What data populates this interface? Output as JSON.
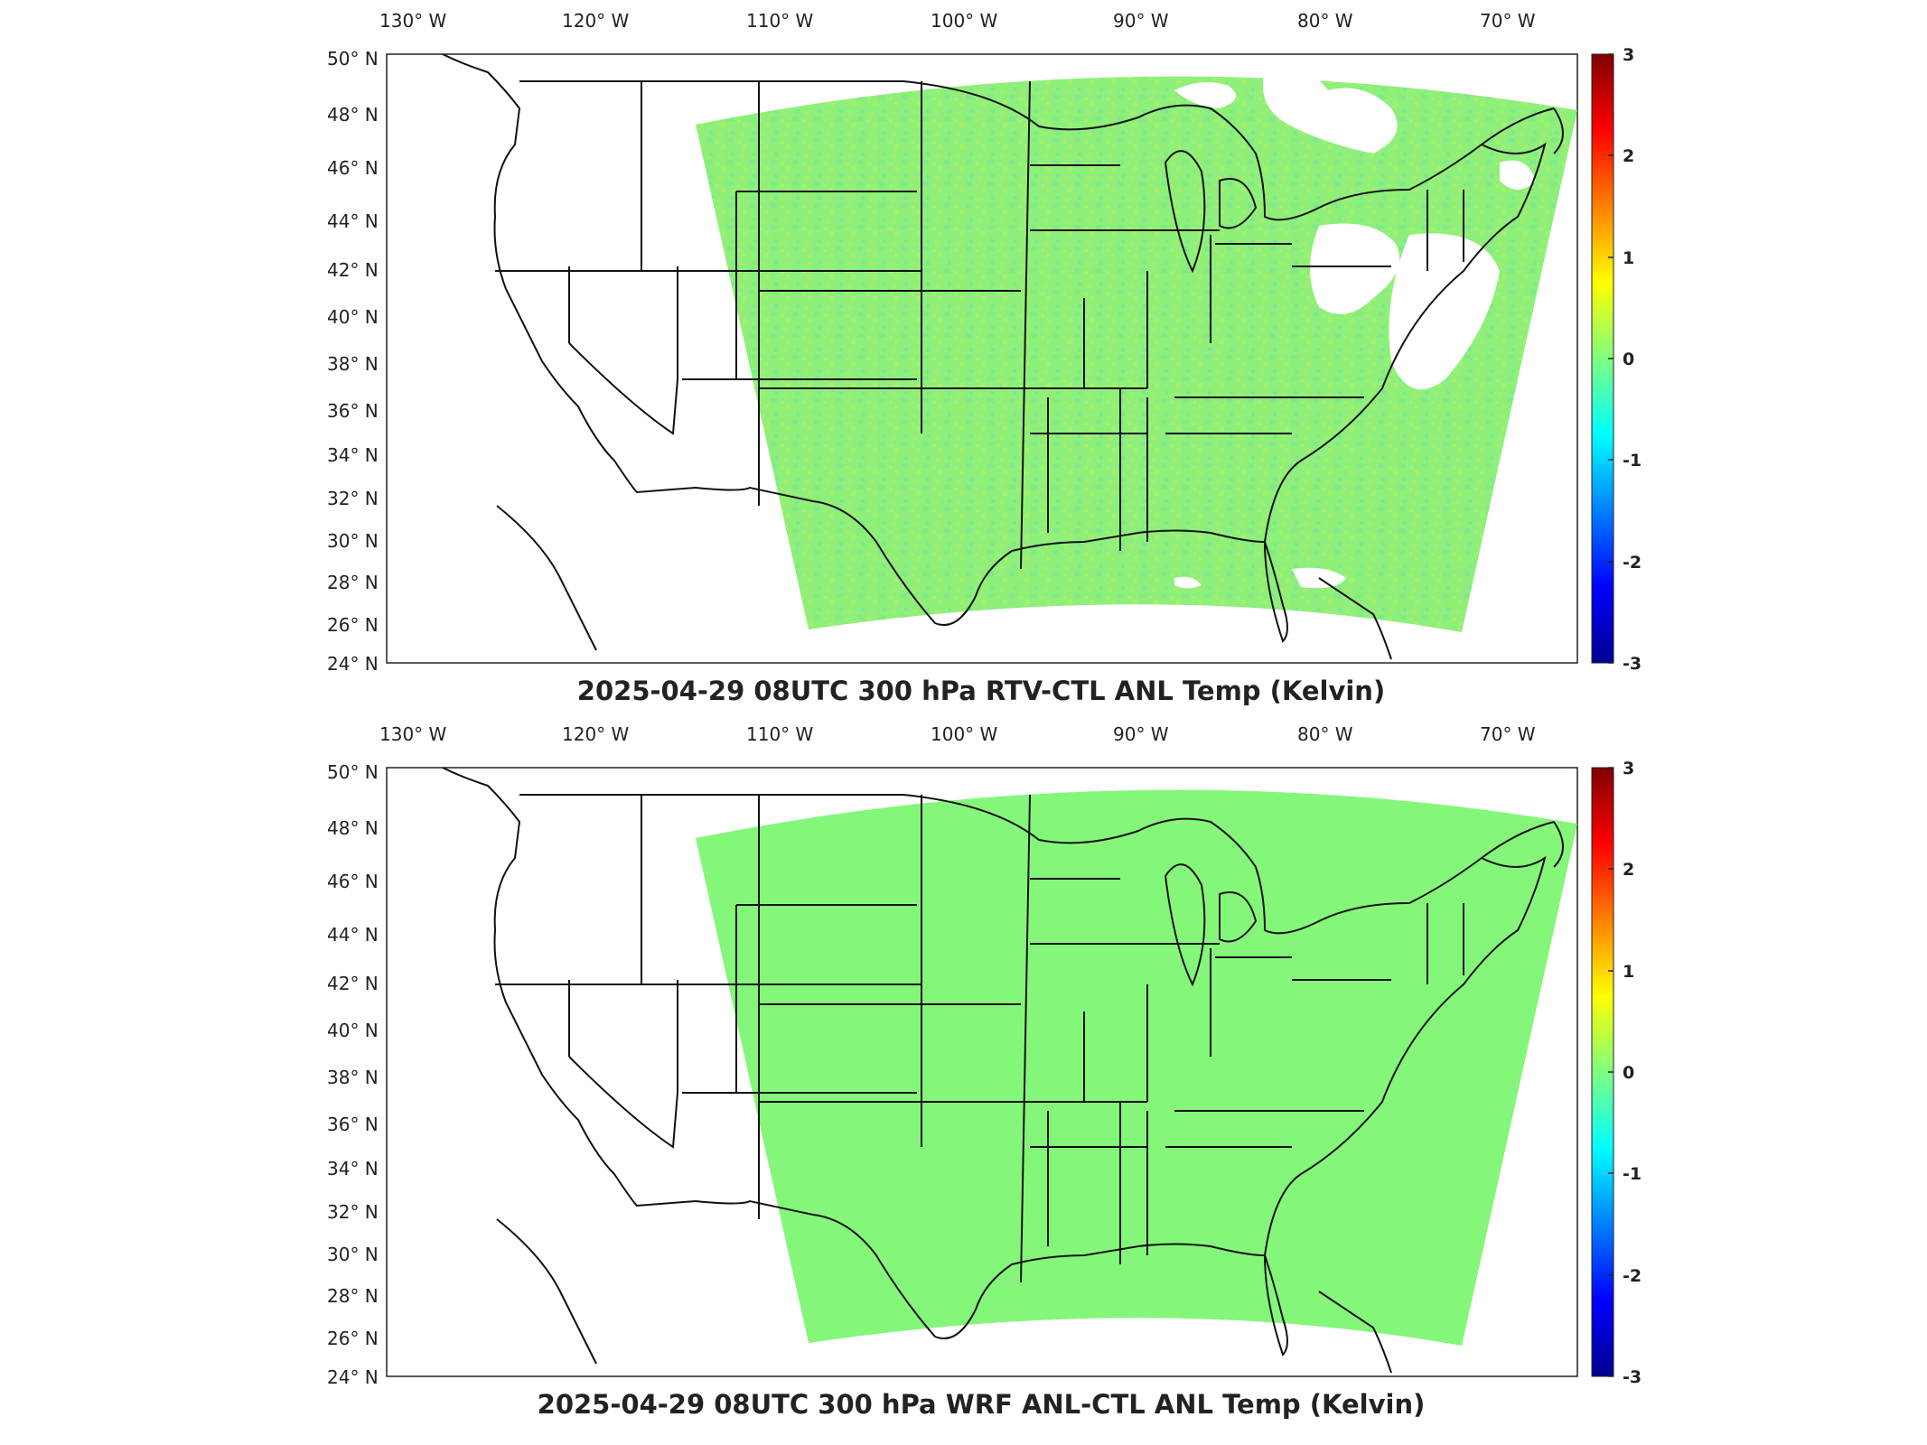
{
  "panels": [
    {
      "title": "2025-04-29 08UTC 300 hPa RTV-CTL ANL Temp (Kelvin)",
      "field": "varied",
      "field_color": "#84f37a",
      "missing_regions": [
        "Lake Erie / Pennsylvania / New York area",
        "northern New England / Quebec",
        "east of New Jersey offshore",
        "Florida east offshore"
      ]
    },
    {
      "title": "2025-04-29 08UTC 300 hPa WRF ANL-CTL ANL Temp (Kelvin)",
      "field": "uniform",
      "field_color": "#84f77a",
      "missing_regions": []
    }
  ],
  "lon_labels": [
    "130° W",
    "120° W",
    "110° W",
    "100° W",
    "90° W",
    "80° W",
    "70° W"
  ],
  "lat_labels": [
    "50° N",
    "48° N",
    "46° N",
    "44° N",
    "42° N",
    "40° N",
    "38° N",
    "36° N",
    "34° N",
    "32° N",
    "30° N",
    "28° N",
    "26° N",
    "24° N"
  ],
  "colorbar": {
    "ticks": [
      "3",
      "2",
      "1",
      "0",
      "-1",
      "-2",
      "-3"
    ],
    "range": [
      -3,
      3
    ],
    "colormap": "jet"
  }
}
